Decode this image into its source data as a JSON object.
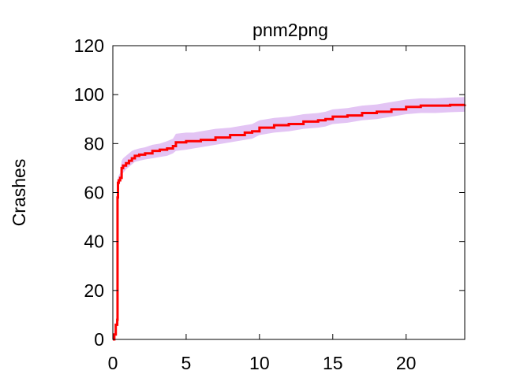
{
  "chart_data": {
    "type": "line",
    "title": "pnm2png",
    "xlabel": "",
    "ylabel": "Crashes",
    "xlim": [
      0,
      24
    ],
    "ylim": [
      0,
      120
    ],
    "xticks": [
      0,
      5,
      10,
      15,
      20
    ],
    "yticks": [
      0,
      20,
      40,
      60,
      80,
      100,
      120
    ],
    "grid": false,
    "legend": "none",
    "colors": {
      "line": "#ff0000",
      "band": "#e3c4f4",
      "axis": "#000000"
    },
    "series": [
      {
        "x": [
          0,
          0.1,
          0.2,
          0.3,
          0.32,
          0.35,
          0.4,
          0.5,
          0.6,
          0.7,
          0.9,
          1.1,
          1.3,
          1.5,
          1.8,
          2.2,
          2.7,
          3.2,
          3.7,
          4.1,
          4.3,
          5.0,
          5.5,
          6.0,
          7.0,
          8.0,
          9.0,
          9.5,
          10.0,
          11.0,
          12.0,
          13.0,
          14.0,
          14.5,
          15.0,
          16.0,
          17.0,
          18.0,
          19.0,
          20.0,
          21.0,
          22.0,
          23.0,
          24.0
        ],
        "y": [
          0,
          2,
          6,
          8,
          58,
          64,
          65,
          66,
          70,
          71,
          72,
          73,
          74,
          75,
          75.5,
          76,
          77,
          77.5,
          78,
          79,
          80.5,
          81,
          81,
          81.5,
          82.5,
          83.5,
          84.5,
          85,
          86.5,
          87.5,
          88,
          89,
          89.5,
          90,
          91,
          91.5,
          92.5,
          93,
          94,
          95,
          95.5,
          95.5,
          95.8,
          96
        ],
        "lower": [
          0,
          1.5,
          5,
          7,
          55,
          62,
          63,
          64,
          67,
          68,
          69.5,
          70.5,
          71.5,
          72.5,
          73,
          73.5,
          74,
          74.5,
          75,
          76,
          77,
          77.5,
          78,
          78.5,
          79.5,
          80.5,
          81.5,
          82,
          83.5,
          84.5,
          85,
          86,
          86.5,
          87,
          88,
          88.5,
          89.5,
          90,
          91,
          92,
          92.5,
          92.5,
          92.8,
          93
        ],
        "upper": [
          0,
          2.5,
          7,
          9,
          61,
          66,
          67,
          68,
          73,
          74,
          75,
          76,
          77,
          77.5,
          78,
          78.5,
          79.5,
          80,
          81,
          82,
          84,
          84.5,
          84.5,
          85,
          86,
          86.5,
          87.5,
          88,
          89.5,
          90.5,
          91,
          92,
          92.5,
          93,
          94,
          94.5,
          95.5,
          96,
          97,
          98,
          98.5,
          98.5,
          98.8,
          99
        ]
      }
    ]
  }
}
